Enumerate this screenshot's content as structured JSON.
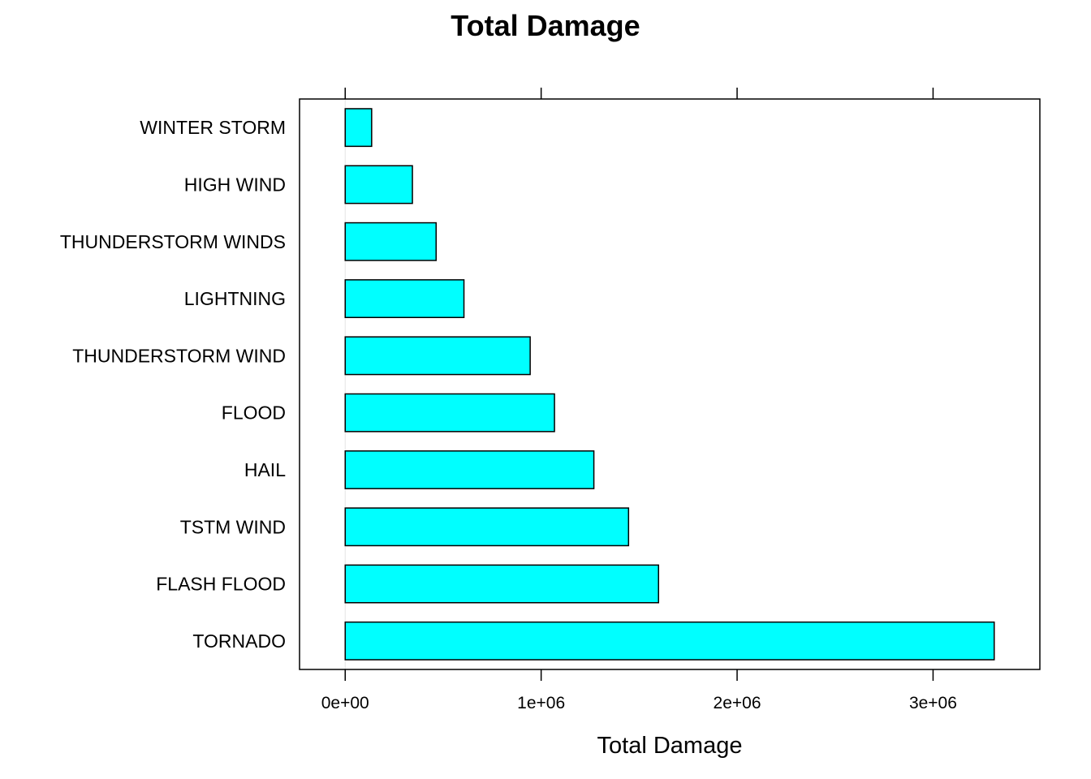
{
  "chart_data": {
    "type": "bar",
    "orientation": "horizontal",
    "title": "Total Damage",
    "xlabel": "Total Damage",
    "ylabel": "",
    "categories": [
      "TORNADO",
      "FLASH FLOOD",
      "TSTM WIND",
      "HAIL",
      "FLOOD",
      "THUNDERSTORM WIND",
      "LIGHTNING",
      "THUNDERSTORM WINDS",
      "HIGH WIND",
      "WINTER STORM"
    ],
    "values": [
      3312000,
      1599000,
      1446000,
      1269000,
      1068000,
      944000,
      606000,
      464000,
      343000,
      135000
    ],
    "xlim": [
      -233000,
      3545000
    ],
    "xticks": [
      0,
      1000000,
      2000000,
      3000000
    ],
    "xtick_labels": [
      "0e+00",
      "1e+06",
      "2e+06",
      "3e+06"
    ],
    "bar_color": "#00ffff",
    "bar_edge_color": "#000000",
    "grid": false,
    "legend": "none"
  }
}
